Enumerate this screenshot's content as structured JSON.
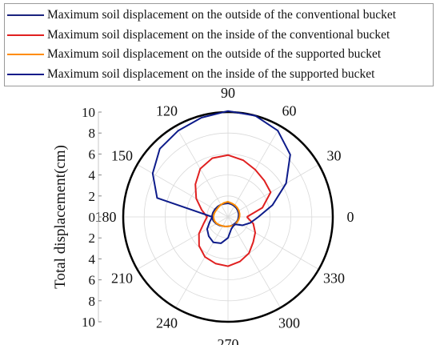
{
  "chart_data": {
    "type": "polar-line",
    "ylabel": "Total displacement(cm)",
    "rlim": [
      0,
      10
    ],
    "radial_ticks_up": [
      "10",
      "8",
      "6",
      "4",
      "2",
      "0"
    ],
    "radial_ticks_down": [
      "2",
      "4",
      "6",
      "8",
      "10"
    ],
    "angle_ticks": [
      "0",
      "30",
      "60",
      "90",
      "120",
      "150",
      "180",
      "210",
      "240",
      "270",
      "300",
      "330"
    ],
    "angle_units": "deg",
    "grid": true,
    "legend_position": "top",
    "series": [
      {
        "name": "Maximum soil displacement on the outside of the conventional bucket",
        "color": "#1a237e",
        "r": [
          1.0,
          1.05,
          1.1,
          1.15,
          1.2,
          1.25,
          1.3,
          1.3,
          1.35,
          1.4,
          1.45,
          1.5,
          1.55,
          1.45,
          1.3,
          1.15,
          1.0,
          0.95,
          0.9,
          0.9,
          0.9,
          0.9,
          0.95,
          0.98,
          1.0
        ]
      },
      {
        "name": "Maximum soil displacement on the inside of the conventional bucket",
        "color": "#e02020",
        "r": [
          1.8,
          3.4,
          4.7,
          4.9,
          5.2,
          5.6,
          5.9,
          5.8,
          5.3,
          4.4,
          3.5,
          2.6,
          2.0,
          2.4,
          3.2,
          3.9,
          4.4,
          4.6,
          4.7,
          4.4,
          4.0,
          3.4,
          3.0,
          2.5,
          1.8
        ]
      },
      {
        "name": "Maximum soil displacement on the outside of the supported bucket",
        "color": "#ff8c00",
        "r": [
          1.1,
          1.15,
          1.2,
          1.25,
          1.3,
          1.35,
          1.45,
          1.4,
          1.35,
          1.3,
          1.3,
          1.35,
          1.4,
          1.35,
          1.25,
          1.1,
          1.0,
          0.95,
          0.9,
          0.9,
          0.95,
          1.0,
          1.0,
          1.05,
          1.1
        ]
      },
      {
        "name": "Maximum soil displacement on the inside of the supported bucket",
        "color": "#0d1b8a",
        "r": [
          2.9,
          4.4,
          6.4,
          8.4,
          9.5,
          10.0,
          10.1,
          9.8,
          9.5,
          9.2,
          8.3,
          7.0,
          1.5,
          1.8,
          2.3,
          2.6,
          2.8,
          2.6,
          2.0,
          1.2,
          1.0,
          1.0,
          1.6,
          2.2,
          2.9
        ]
      }
    ],
    "theta": [
      0,
      15,
      30,
      45,
      60,
      75,
      90,
      105,
      120,
      135,
      150,
      165,
      180,
      195,
      210,
      225,
      240,
      255,
      270,
      285,
      300,
      315,
      330,
      345,
      360
    ]
  }
}
